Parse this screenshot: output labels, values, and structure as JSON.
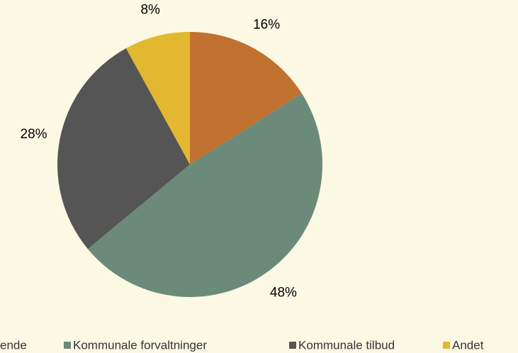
{
  "chart_data": {
    "type": "pie",
    "categories": [
      "ende",
      "Kommunale forvaltninger",
      "Kommunale tilbud",
      "Andet"
    ],
    "values": [
      16,
      48,
      28,
      8
    ],
    "value_labels": [
      "16%",
      "48%",
      "28%",
      "8%"
    ],
    "colors": [
      "#c0702f",
      "#6b8a79",
      "#555555",
      "#e3b830"
    ]
  }
}
